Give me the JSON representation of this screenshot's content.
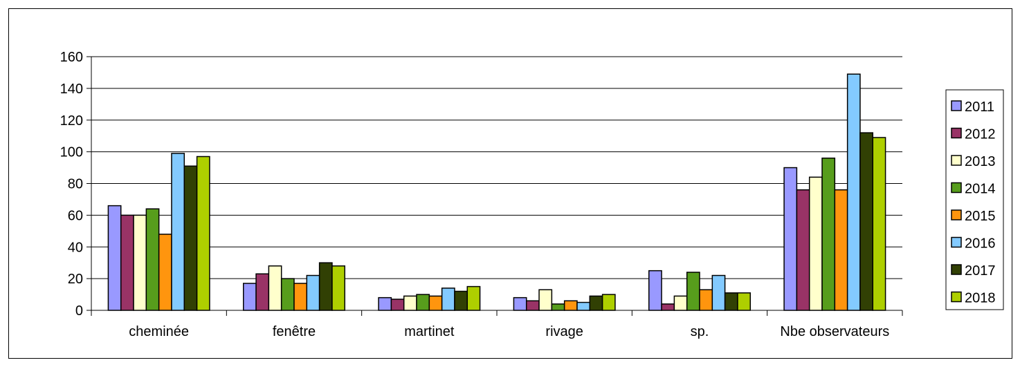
{
  "chart_data": {
    "type": "bar",
    "categories": [
      "cheminée",
      "fenêtre",
      "martinet",
      "rivage",
      "sp.",
      "Nbe observateurs"
    ],
    "series": [
      {
        "name": "2011",
        "color": "#9999ff",
        "values": [
          66,
          17,
          8,
          8,
          25,
          90
        ]
      },
      {
        "name": "2012",
        "color": "#993366",
        "values": [
          60,
          23,
          7,
          6,
          4,
          76
        ]
      },
      {
        "name": "2013",
        "color": "#ffffcc",
        "values": [
          60,
          28,
          9,
          13,
          9,
          84
        ]
      },
      {
        "name": "2014",
        "color": "#579d1c",
        "values": [
          64,
          20,
          10,
          4,
          24,
          96
        ]
      },
      {
        "name": "2015",
        "color": "#ff950e",
        "values": [
          48,
          17,
          9,
          6,
          13,
          76
        ]
      },
      {
        "name": "2016",
        "color": "#83caff",
        "values": [
          99,
          22,
          14,
          5,
          22,
          149
        ]
      },
      {
        "name": "2017",
        "color": "#314004",
        "values": [
          91,
          30,
          12,
          9,
          11,
          112
        ]
      },
      {
        "name": "2018",
        "color": "#aecf00",
        "values": [
          97,
          28,
          15,
          10,
          11,
          109
        ]
      }
    ],
    "ylim": [
      0,
      160
    ],
    "yticks": [
      0,
      20,
      40,
      60,
      80,
      100,
      120,
      140,
      160
    ],
    "grid": true,
    "legend": "right"
  }
}
